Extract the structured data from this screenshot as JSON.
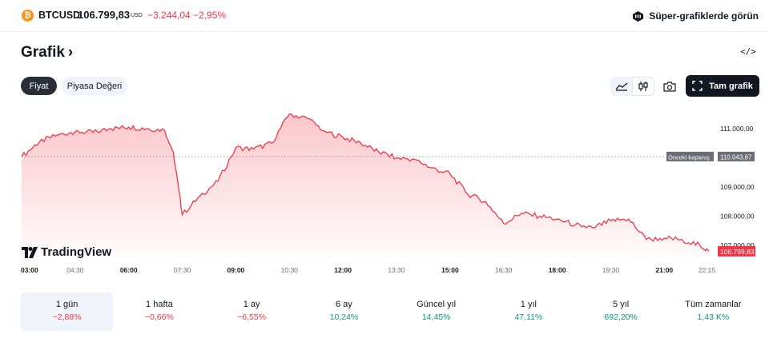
{
  "header": {
    "symbol": "BTCUSD",
    "price": "106.799,83",
    "currency": "USD",
    "change": "−3.244,04",
    "change_percent": "−2,95%",
    "super_charts_label": "Süper-grafiklerde görün",
    "logo_letter": "₿"
  },
  "section": {
    "title": "Grafik",
    "title_chevron": "›",
    "embed_label": "</>"
  },
  "segments": {
    "price": "Fiyat",
    "market_cap": "Piyasa Değeri"
  },
  "toolbar": {
    "full_chart": "Tam grafik"
  },
  "watermark": {
    "text": "TradingView"
  },
  "colors": {
    "down": "#f23645",
    "up": "#089981",
    "line": "#f23645",
    "fill_top": "#fbd6da",
    "dark": "#131722"
  },
  "chart_data": {
    "type": "area",
    "x": [
      "03:00",
      "03:30",
      "04:00",
      "04:30",
      "05:00",
      "05:30",
      "06:00",
      "06:30",
      "07:00",
      "07:15",
      "07:30",
      "08:00",
      "08:30",
      "09:00",
      "09:30",
      "10:00",
      "10:30",
      "11:00",
      "11:30",
      "12:00",
      "12:30",
      "13:00",
      "13:30",
      "14:00",
      "14:30",
      "15:00",
      "15:30",
      "16:00",
      "16:30",
      "17:00",
      "17:30",
      "18:00",
      "18:30",
      "19:00",
      "19:30",
      "20:00",
      "20:30",
      "21:00",
      "21:30",
      "22:00",
      "22:15"
    ],
    "series": [
      {
        "values": [
          110040,
          110550,
          110780,
          110900,
          110870,
          111000,
          111050,
          111000,
          110950,
          110200,
          108050,
          108700,
          109200,
          110350,
          110300,
          110500,
          111500,
          111350,
          110900,
          110700,
          110500,
          110200,
          110000,
          109950,
          109650,
          109450,
          108750,
          108500,
          107750,
          108100,
          108000,
          107900,
          107700,
          107600,
          107850,
          107900,
          107200,
          107250,
          107200,
          107000,
          106800
        ]
      }
    ],
    "x_ticks": [
      "03:00",
      "04:30",
      "06:00",
      "07:30",
      "09:00",
      "10:30",
      "12:00",
      "13:30",
      "15:00",
      "16:30",
      "18:00",
      "19:30",
      "21:00",
      "22:15"
    ],
    "major_ticks": [
      "03:00",
      "06:00",
      "09:00",
      "12:00",
      "15:00",
      "18:00",
      "21:00"
    ],
    "y_ticks": [
      {
        "value": 111000,
        "label": "111.000,00"
      },
      {
        "value": 109000,
        "label": "109.000,00"
      },
      {
        "value": 108000,
        "label": "108.000,00"
      },
      {
        "value": 107000,
        "label": "107.000,00"
      }
    ],
    "previous_close": {
      "value": 110043.87,
      "label": "Önceki kapanış",
      "price_label": "110.043,87"
    },
    "last_price": {
      "value": 106799.83,
      "label": "106.799,83"
    },
    "ylim": [
      106620,
      111820
    ]
  },
  "ranges": [
    {
      "label": "1 gün",
      "value": "−2,88%",
      "dir": "neg",
      "active": true
    },
    {
      "label": "1 hafta",
      "value": "−0,66%",
      "dir": "neg"
    },
    {
      "label": "1 ay",
      "value": "−6,55%",
      "dir": "neg"
    },
    {
      "label": "6 ay",
      "value": "10,24%",
      "dir": "pos"
    },
    {
      "label": "Güncel yıl",
      "value": "14,45%",
      "dir": "pos"
    },
    {
      "label": "1 yıl",
      "value": "47,11%",
      "dir": "pos"
    },
    {
      "label": "5 yıl",
      "value": "692,20%",
      "dir": "pos"
    },
    {
      "label": "Tüm zamanlar",
      "value": "1,43 K%",
      "dir": "pos"
    }
  ]
}
